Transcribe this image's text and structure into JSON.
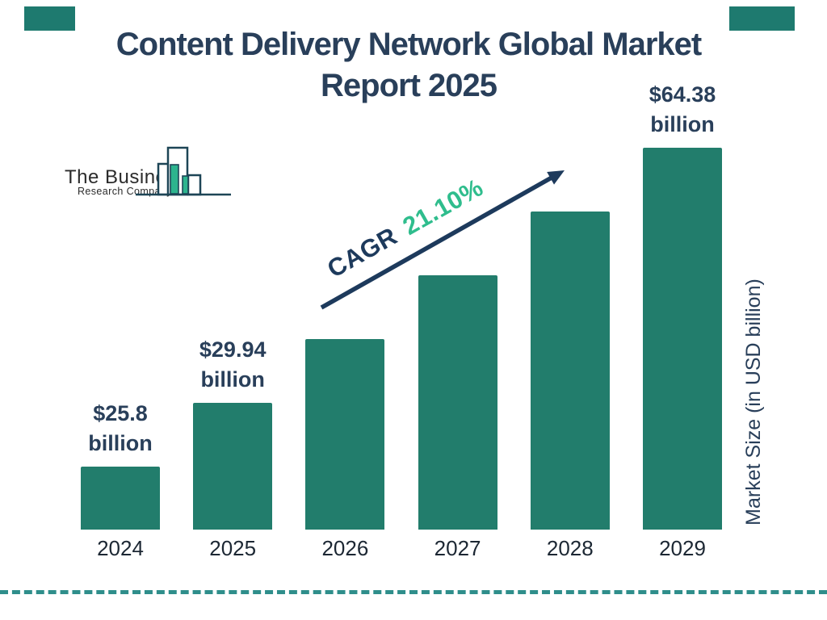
{
  "title": {
    "line1": "Content Delivery Network Global Market",
    "line2": "Report 2025"
  },
  "logo": {
    "name": "The Business",
    "subtitle": "Research Company"
  },
  "chart_data": {
    "type": "bar",
    "title": "Content Delivery Network Global Market Report 2025",
    "categories": [
      "2024",
      "2025",
      "2026",
      "2027",
      "2028",
      "2029"
    ],
    "values": [
      25.8,
      29.94,
      null,
      null,
      null,
      64.38
    ],
    "unit": "USD billion",
    "data_labels": [
      {
        "line1": "$25.8",
        "line2": "billion"
      },
      {
        "line1": "$29.94",
        "line2": "billion"
      },
      null,
      null,
      null,
      {
        "line1": "$64.38",
        "line2": "billion"
      }
    ],
    "xlabel": "",
    "ylabel": "Market Size (in USD billion)",
    "annotation": {
      "label": "CAGR",
      "value": "21.10%"
    },
    "legend": false,
    "grid": false,
    "colors": {
      "bar": "#227d6c",
      "heading_navy": "#293f5a",
      "arrow_navy": "#1d3a5c",
      "cagr_green": "#2fbd8d",
      "dash_teal": "#2f8e8b",
      "corner_accent": "#1e7a6f",
      "logo_green": "#2db48e",
      "logo_outline": "#1d4556"
    }
  }
}
